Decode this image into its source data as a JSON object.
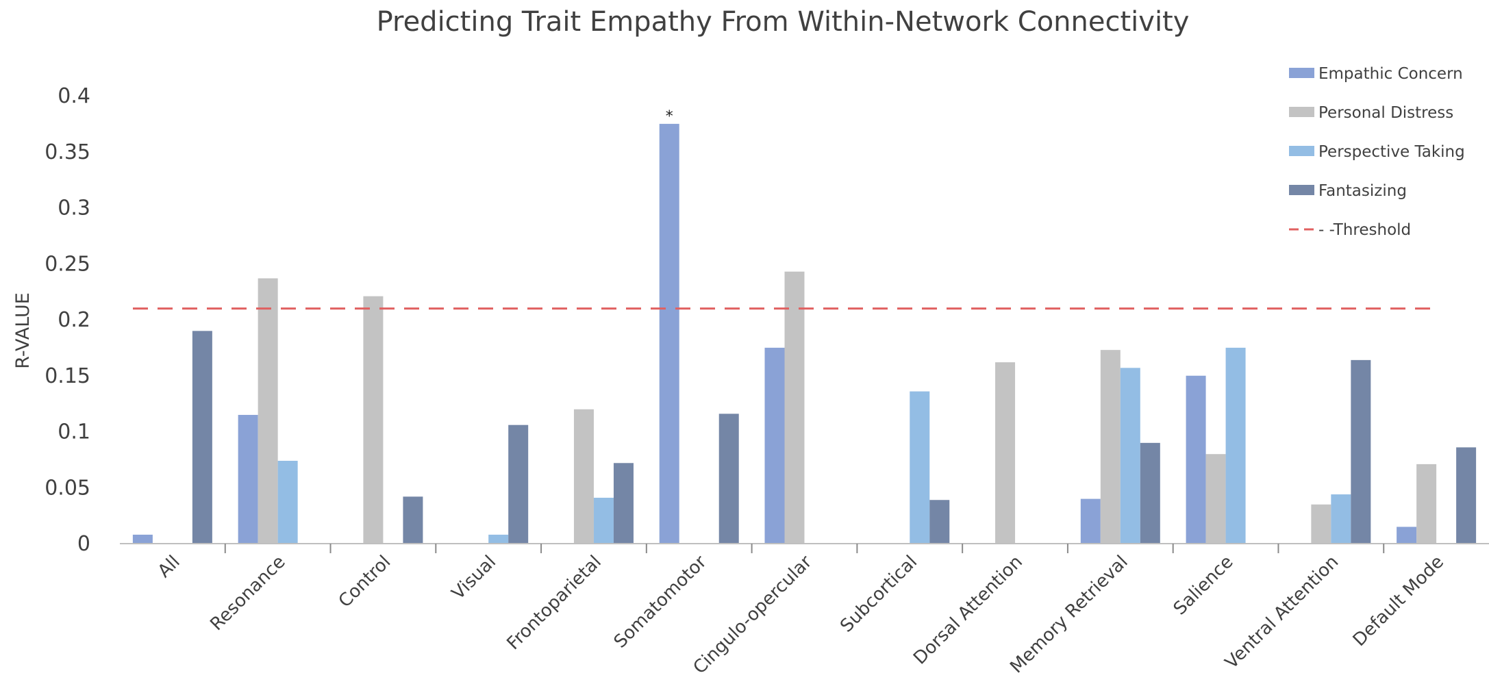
{
  "chart_data": {
    "type": "bar",
    "title": "Predicting Trait Empathy From Within-Network Connectivity",
    "xlabel": "",
    "ylabel": "R-VALUE",
    "ylim": [
      0,
      0.4
    ],
    "yticks": [
      "0",
      "0.05",
      "0.1",
      "0.15",
      "0.2",
      "0.25",
      "0.3",
      "0.35",
      "0.4"
    ],
    "ytick_values": [
      0,
      0.05,
      0.1,
      0.15,
      0.2,
      0.25,
      0.3,
      0.35,
      0.4
    ],
    "grid": false,
    "legend_position": "top-right",
    "categories": [
      "All",
      "Resonance",
      "Control",
      "Visual",
      "Frontoparietal",
      "Somatomotor",
      "Cingulo-opercular",
      "Subcortical",
      "Dorsal Attention",
      "Memory Retrieval",
      "Salience",
      "Ventral Attention",
      "Default Mode"
    ],
    "series": [
      {
        "name": "Empathic Concern",
        "color": "#8aa2d6",
        "values": [
          0.008,
          0.115,
          0,
          0,
          0,
          0.375,
          0.175,
          0,
          0,
          0.04,
          0.15,
          0,
          0.015
        ]
      },
      {
        "name": "Personal Distress",
        "color": "#c3c3c3",
        "values": [
          0,
          0.237,
          0.221,
          0,
          0.12,
          0,
          0.243,
          0,
          0.162,
          0.173,
          0.08,
          0.035,
          0.071
        ]
      },
      {
        "name": "Perspective Taking",
        "color": "#93bde4",
        "values": [
          0,
          0.074,
          0,
          0.008,
          0.041,
          0,
          0,
          0.136,
          0,
          0.157,
          0.175,
          0.044,
          0
        ]
      },
      {
        "name": "Fantasizing",
        "color": "#7486a6",
        "values": [
          0.19,
          0,
          0.042,
          0.106,
          0.072,
          0.116,
          0,
          0.039,
          0,
          0.09,
          0,
          0.164,
          0.086
        ]
      }
    ],
    "threshold": {
      "name": "Threshold",
      "legend_label": "- -Threshold",
      "value": 0.21,
      "color": "#e06060"
    },
    "annotations": [
      {
        "text": "*",
        "category": "Somatomotor",
        "series": "Empathic Concern"
      }
    ]
  }
}
